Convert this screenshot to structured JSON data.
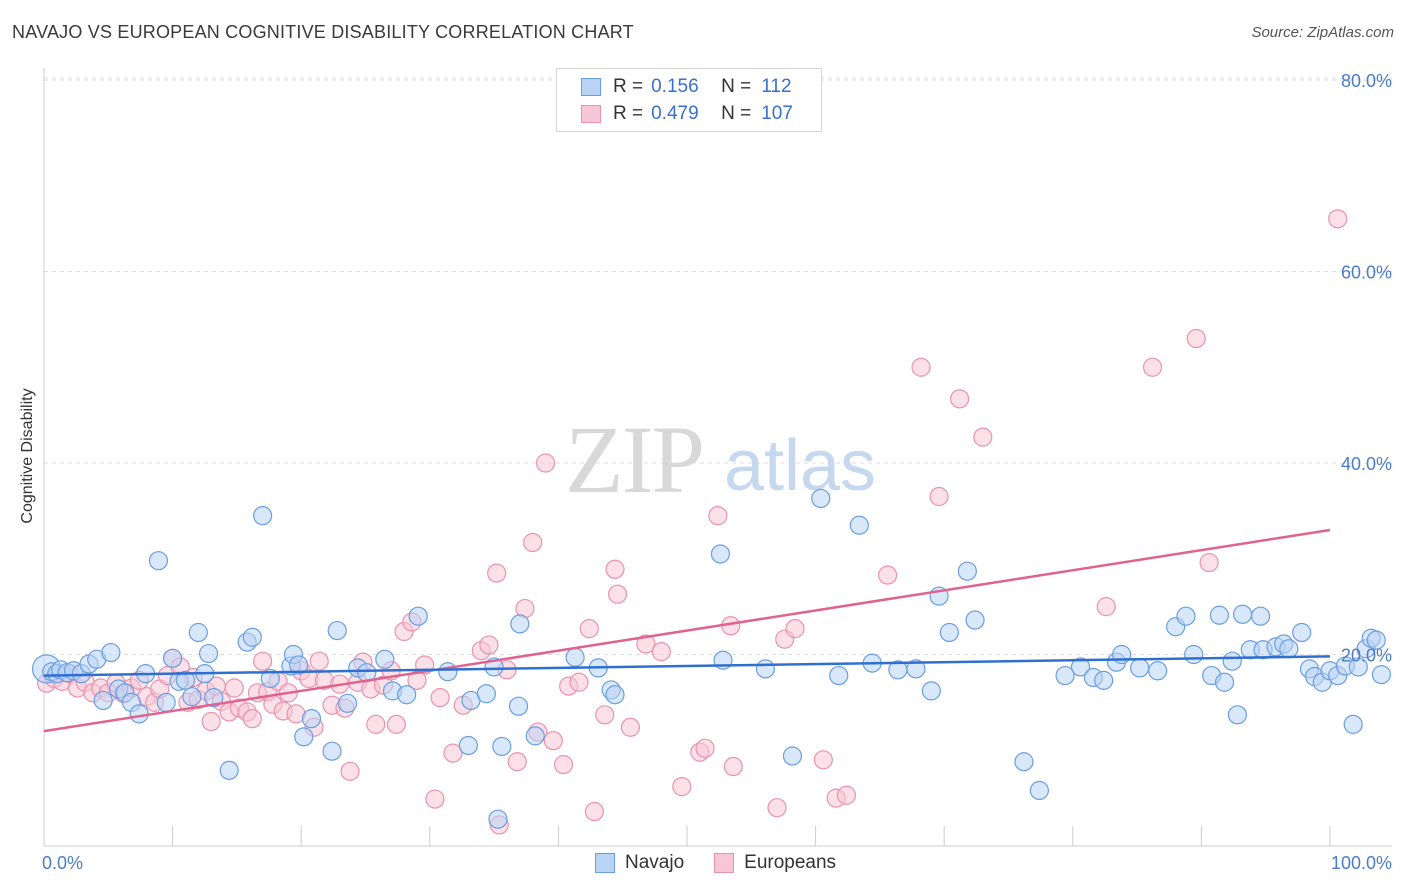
{
  "title": "NAVAJO VS EUROPEAN COGNITIVE DISABILITY CORRELATION CHART",
  "source": "Source: ZipAtlas.com",
  "watermark": {
    "zip": "ZIP",
    "atlas": "atlas"
  },
  "colors": {
    "navajo_fill": "#b9d3f5",
    "navajo_stroke": "#6a9ee0",
    "navajo_line": "#2e6fd0",
    "euro_fill": "#f8c6d6",
    "euro_stroke": "#e893b0",
    "euro_line": "#e0628f"
  },
  "legend": {
    "rows": [
      {
        "r_label": "R =",
        "r_value": "0.156",
        "n_label": "N =",
        "n_value": "112"
      },
      {
        "r_label": "R =",
        "r_value": "0.479",
        "n_label": "N =",
        "n_value": "107"
      }
    ]
  },
  "bottom_legend": [
    "Navajo",
    "Europeans"
  ],
  "chart_data": {
    "type": "scatter",
    "title": "NAVAJO VS EUROPEAN COGNITIVE DISABILITY CORRELATION CHART",
    "xlabel": "",
    "ylabel": "Cognitive Disability",
    "xlim": [
      0,
      100
    ],
    "ylim": [
      0,
      80
    ],
    "x_tick_labels": [
      "0.0%",
      "100.0%"
    ],
    "y_ticks": [
      20,
      40,
      60,
      80
    ],
    "y_tick_labels": [
      "20.0%",
      "40.0%",
      "60.0%",
      "80.0%"
    ],
    "grid": "horizontal dashed",
    "legend_position": "top-center",
    "series": [
      {
        "name": "Navajo",
        "trend": {
          "x0": 0,
          "y0": 17.8,
          "x1": 100,
          "y1": 19.8
        },
        "points": [
          [
            0.2,
            18.5
          ],
          [
            0.6,
            18.2
          ],
          [
            1.0,
            18.0
          ],
          [
            1.3,
            18.4
          ],
          [
            1.8,
            18.1
          ],
          [
            2.3,
            18.3
          ],
          [
            2.9,
            18.0
          ],
          [
            3.5,
            19.0
          ],
          [
            4.1,
            19.5
          ],
          [
            4.6,
            15.2
          ],
          [
            5.2,
            20.2
          ],
          [
            5.8,
            16.4
          ],
          [
            6.3,
            16.0
          ],
          [
            6.8,
            15.0
          ],
          [
            7.4,
            13.8
          ],
          [
            7.9,
            18.0
          ],
          [
            8.9,
            29.8
          ],
          [
            9.5,
            15.0
          ],
          [
            10.0,
            19.6
          ],
          [
            10.5,
            17.2
          ],
          [
            11.0,
            17.3
          ],
          [
            11.5,
            15.6
          ],
          [
            12.0,
            22.3
          ],
          [
            12.5,
            18.0
          ],
          [
            12.8,
            20.1
          ],
          [
            13.2,
            15.5
          ],
          [
            14.4,
            7.9
          ],
          [
            15.8,
            21.3
          ],
          [
            16.2,
            21.8
          ],
          [
            17.0,
            34.5
          ],
          [
            17.6,
            17.5
          ],
          [
            19.2,
            18.8
          ],
          [
            19.4,
            20.0
          ],
          [
            19.8,
            18.9
          ],
          [
            20.2,
            11.4
          ],
          [
            20.8,
            13.3
          ],
          [
            22.4,
            9.9
          ],
          [
            22.8,
            22.5
          ],
          [
            23.6,
            14.9
          ],
          [
            24.4,
            18.6
          ],
          [
            25.1,
            18.1
          ],
          [
            26.5,
            19.5
          ],
          [
            27.1,
            16.2
          ],
          [
            28.2,
            15.8
          ],
          [
            29.1,
            24.0
          ],
          [
            31.4,
            18.2
          ],
          [
            33.0,
            10.5
          ],
          [
            33.2,
            15.2
          ],
          [
            34.4,
            15.9
          ],
          [
            35.0,
            18.7
          ],
          [
            35.6,
            10.4
          ],
          [
            36.9,
            14.6
          ],
          [
            37.0,
            23.2
          ],
          [
            38.2,
            11.5
          ],
          [
            35.3,
            2.8
          ],
          [
            41.3,
            19.7
          ],
          [
            43.1,
            18.6
          ],
          [
            44.1,
            16.3
          ],
          [
            44.4,
            15.8
          ],
          [
            52.6,
            30.5
          ],
          [
            52.8,
            19.4
          ],
          [
            56.1,
            18.5
          ],
          [
            58.2,
            9.4
          ],
          [
            60.4,
            36.3
          ],
          [
            61.8,
            17.8
          ],
          [
            63.4,
            33.5
          ],
          [
            64.4,
            19.1
          ],
          [
            66.4,
            18.4
          ],
          [
            67.8,
            18.5
          ],
          [
            69.0,
            16.2
          ],
          [
            69.6,
            26.1
          ],
          [
            70.4,
            22.3
          ],
          [
            71.8,
            28.7
          ],
          [
            72.4,
            23.6
          ],
          [
            76.2,
            8.8
          ],
          [
            77.4,
            5.8
          ],
          [
            80.6,
            18.7
          ],
          [
            81.6,
            17.6
          ],
          [
            82.4,
            17.3
          ],
          [
            83.4,
            19.2
          ],
          [
            83.8,
            20.0
          ],
          [
            85.2,
            18.6
          ],
          [
            86.6,
            18.3
          ],
          [
            88.0,
            22.9
          ],
          [
            88.8,
            24.0
          ],
          [
            89.4,
            20.0
          ],
          [
            90.8,
            17.8
          ],
          [
            91.4,
            24.1
          ],
          [
            91.8,
            17.1
          ],
          [
            92.4,
            19.3
          ],
          [
            92.8,
            13.7
          ],
          [
            93.2,
            24.2
          ],
          [
            93.8,
            20.5
          ],
          [
            94.6,
            24.0
          ],
          [
            94.8,
            20.5
          ],
          [
            95.8,
            20.8
          ],
          [
            96.4,
            21.1
          ],
          [
            96.8,
            20.6
          ],
          [
            97.8,
            22.3
          ],
          [
            98.4,
            18.5
          ],
          [
            98.8,
            17.7
          ],
          [
            99.4,
            17.1
          ],
          [
            100.0,
            18.3
          ],
          [
            100.6,
            17.8
          ],
          [
            101.2,
            18.8
          ],
          [
            101.8,
            12.7
          ],
          [
            102.2,
            18.7
          ],
          [
            102.8,
            20.6
          ],
          [
            103.2,
            21.7
          ],
          [
            103.6,
            21.5
          ],
          [
            104.0,
            17.9
          ],
          [
            79.4,
            17.8
          ]
        ]
      },
      {
        "name": "Europeans",
        "trend": {
          "x0": 0,
          "y0": 12.0,
          "x1": 100,
          "y1": 33.0
        },
        "points": [
          [
            0.2,
            17.0
          ],
          [
            0.8,
            17.5
          ],
          [
            1.4,
            17.2
          ],
          [
            2.0,
            18.0
          ],
          [
            2.6,
            16.5
          ],
          [
            3.2,
            17.1
          ],
          [
            3.8,
            16.0
          ],
          [
            4.4,
            16.5
          ],
          [
            5.0,
            16.0
          ],
          [
            5.6,
            17.0
          ],
          [
            6.2,
            15.9
          ],
          [
            6.8,
            16.5
          ],
          [
            7.4,
            17.3
          ],
          [
            8.0,
            15.6
          ],
          [
            8.6,
            15.0
          ],
          [
            9.0,
            16.4
          ],
          [
            9.6,
            17.8
          ],
          [
            10.0,
            19.6
          ],
          [
            10.6,
            18.7
          ],
          [
            11.2,
            15.0
          ],
          [
            11.6,
            17.6
          ],
          [
            12.0,
            15.3
          ],
          [
            12.6,
            16.2
          ],
          [
            13.0,
            13.0
          ],
          [
            13.4,
            16.7
          ],
          [
            13.8,
            15.1
          ],
          [
            14.4,
            14.0
          ],
          [
            14.8,
            16.5
          ],
          [
            15.2,
            14.4
          ],
          [
            15.8,
            14.0
          ],
          [
            16.2,
            13.3
          ],
          [
            16.6,
            16.0
          ],
          [
            17.0,
            19.3
          ],
          [
            17.4,
            16.1
          ],
          [
            17.8,
            14.8
          ],
          [
            18.2,
            17.2
          ],
          [
            18.6,
            14.1
          ],
          [
            19.0,
            16.0
          ],
          [
            19.6,
            13.8
          ],
          [
            20.0,
            18.3
          ],
          [
            20.6,
            17.5
          ],
          [
            21.0,
            12.4
          ],
          [
            21.4,
            19.3
          ],
          [
            21.8,
            17.3
          ],
          [
            22.4,
            14.7
          ],
          [
            23.0,
            16.9
          ],
          [
            23.4,
            14.4
          ],
          [
            23.8,
            7.8
          ],
          [
            24.4,
            17.1
          ],
          [
            24.8,
            19.2
          ],
          [
            25.4,
            16.4
          ],
          [
            25.8,
            12.7
          ],
          [
            26.4,
            16.8
          ],
          [
            27.0,
            18.3
          ],
          [
            27.4,
            12.7
          ],
          [
            28.0,
            22.4
          ],
          [
            28.6,
            23.4
          ],
          [
            29.0,
            17.3
          ],
          [
            29.6,
            18.9
          ],
          [
            30.4,
            4.9
          ],
          [
            30.8,
            15.5
          ],
          [
            31.8,
            9.7
          ],
          [
            32.6,
            14.7
          ],
          [
            34.0,
            20.4
          ],
          [
            34.6,
            21.0
          ],
          [
            35.4,
            2.2
          ],
          [
            36.0,
            18.4
          ],
          [
            35.2,
            28.5
          ],
          [
            36.8,
            8.8
          ],
          [
            37.4,
            24.8
          ],
          [
            38.0,
            31.7
          ],
          [
            38.4,
            11.9
          ],
          [
            39.0,
            40.0
          ],
          [
            39.6,
            11.0
          ],
          [
            40.4,
            8.5
          ],
          [
            40.8,
            16.7
          ],
          [
            41.6,
            17.1
          ],
          [
            42.4,
            22.7
          ],
          [
            42.8,
            3.6
          ],
          [
            43.6,
            13.7
          ],
          [
            44.4,
            28.9
          ],
          [
            44.6,
            26.3
          ],
          [
            45.6,
            12.4
          ],
          [
            46.8,
            21.1
          ],
          [
            48.0,
            20.3
          ],
          [
            49.6,
            6.2
          ],
          [
            51.0,
            9.8
          ],
          [
            51.4,
            10.2
          ],
          [
            52.4,
            34.5
          ],
          [
            53.4,
            23.0
          ],
          [
            53.6,
            8.3
          ],
          [
            57.0,
            4.0
          ],
          [
            57.6,
            21.6
          ],
          [
            58.4,
            22.7
          ],
          [
            60.6,
            9.0
          ],
          [
            61.6,
            5.0
          ],
          [
            62.4,
            5.3
          ],
          [
            65.6,
            28.3
          ],
          [
            68.2,
            50.0
          ],
          [
            69.6,
            36.5
          ],
          [
            71.2,
            46.7
          ],
          [
            73.0,
            42.7
          ],
          [
            82.6,
            25.0
          ],
          [
            86.2,
            50.0
          ],
          [
            89.6,
            53.0
          ],
          [
            90.6,
            29.6
          ],
          [
            100.6,
            65.5
          ]
        ]
      }
    ]
  }
}
